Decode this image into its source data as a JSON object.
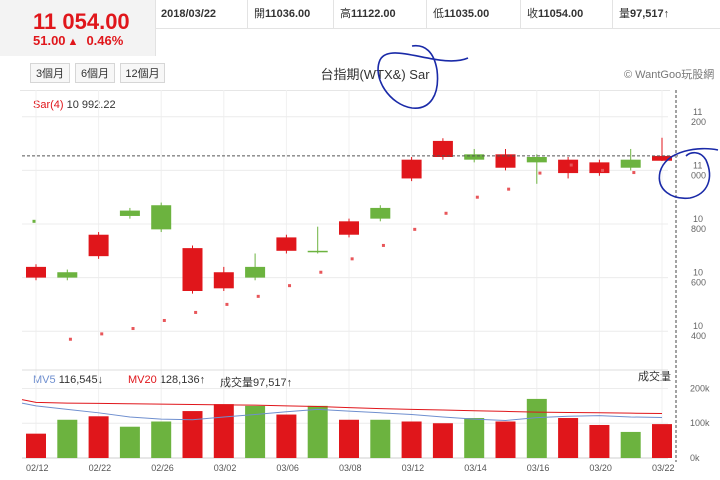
{
  "quote": {
    "price": "11 054.00",
    "change": "51.00",
    "change_arrow": "▲",
    "change_pct": "0.46%"
  },
  "info": {
    "date": "2018/03/22",
    "open_label": "開",
    "open": "11036.00",
    "high_label": "高",
    "high": "11122.00",
    "low_label": "低",
    "low": "11035.00",
    "close_label": "收",
    "close": "11054.00",
    "volume_label": "量",
    "volume": "97,517↑"
  },
  "range_buttons": [
    "3個月",
    "6個月",
    "12個月"
  ],
  "chart_title": "台指期(WTX&) Sar",
  "brand": "© WantGoo玩股網",
  "sar_legend": {
    "key": "Sar(4)",
    "value": "10 992.22"
  },
  "volume_legend": {
    "mv5_label": "MV5",
    "mv5_value": "116,545↓",
    "mv20_label": "MV20",
    "mv20_value": "128,136↑",
    "vol_label": "成交量",
    "vol_value": "97,517↑",
    "axis_title": "成交量"
  },
  "colors": {
    "up": "#e0161b",
    "down": "#6cb33f",
    "mv5": "#6f8fcf",
    "mv20": "#e0161b",
    "sar": "#e8565a",
    "pen": "#1a2aa8"
  },
  "chart_data": {
    "type": "candlestick",
    "title": "台指期(WTX&) Sar",
    "x_tick_labels": [
      "02/12",
      "02/22",
      "02/26",
      "03/02",
      "03/06",
      "03/08",
      "03/12",
      "03/14",
      "03/16",
      "03/20",
      "03/22"
    ],
    "y_tick_labels": [
      "11 200",
      "11 000",
      "10 800",
      "10 600",
      "10 400"
    ],
    "volume_tick_labels": [
      "200k",
      "100k",
      "0k"
    ],
    "ylim": [
      10300,
      11300
    ],
    "candles": [
      {
        "open": 10600,
        "close": 10640,
        "high": 10650,
        "low": 10590,
        "up": true
      },
      {
        "open": 10600,
        "close": 10620,
        "high": 10630,
        "low": 10590,
        "up": false
      },
      {
        "open": 10680,
        "close": 10760,
        "high": 10770,
        "low": 10670,
        "up": true
      },
      {
        "open": 10850,
        "close": 10830,
        "high": 10860,
        "low": 10820,
        "up": false
      },
      {
        "open": 10870,
        "close": 10780,
        "high": 10880,
        "low": 10770,
        "up": false
      },
      {
        "open": 10550,
        "close": 10710,
        "high": 10720,
        "low": 10540,
        "up": true
      },
      {
        "open": 10560,
        "close": 10620,
        "high": 10640,
        "low": 10550,
        "up": true
      },
      {
        "open": 10640,
        "close": 10600,
        "high": 10690,
        "low": 10590,
        "up": false
      },
      {
        "open": 10700,
        "close": 10750,
        "high": 10760,
        "low": 10690,
        "up": true
      },
      {
        "open": 10700,
        "close": 10700,
        "high": 10790,
        "low": 10690,
        "up": false
      },
      {
        "open": 10760,
        "close": 10810,
        "high": 10820,
        "low": 10750,
        "up": true
      },
      {
        "open": 10860,
        "close": 10820,
        "high": 10870,
        "low": 10810,
        "up": false
      },
      {
        "open": 10970,
        "close": 11040,
        "high": 11050,
        "low": 10960,
        "up": true
      },
      {
        "open": 11050,
        "close": 11110,
        "high": 11120,
        "low": 11040,
        "up": true
      },
      {
        "open": 11060,
        "close": 11040,
        "high": 11080,
        "low": 11030,
        "up": false
      },
      {
        "open": 11060,
        "close": 11010,
        "high": 11080,
        "low": 11000,
        "up": true
      },
      {
        "open": 11050,
        "close": 11030,
        "high": 11060,
        "low": 10950,
        "up": false
      },
      {
        "open": 11040,
        "close": 10990,
        "high": 11050,
        "low": 10970,
        "up": true
      },
      {
        "open": 11030,
        "close": 10990,
        "high": 11040,
        "low": 10980,
        "up": true
      },
      {
        "open": 11040,
        "close": 11010,
        "high": 11080,
        "low": 11000,
        "up": false
      },
      {
        "open": 11036,
        "close": 11054,
        "high": 11122,
        "low": 11035,
        "up": true
      }
    ],
    "sar": [
      10810,
      10370,
      10390,
      10410,
      10440,
      10470,
      10500,
      10530,
      10570,
      10620,
      10670,
      10720,
      10780,
      10840,
      10900,
      10930,
      10990,
      11020,
      11000,
      10992
    ],
    "volume": [
      70,
      110,
      120,
      90,
      105,
      135,
      155,
      150,
      125,
      150,
      110,
      110,
      105,
      100,
      115,
      105,
      170,
      115,
      95,
      75,
      97.5
    ],
    "mv5": [
      150,
      140,
      130,
      118,
      112,
      110,
      118,
      125,
      133,
      140,
      135,
      130,
      125,
      118,
      112,
      108,
      116,
      120,
      122,
      118,
      116.5
    ],
    "mv20": [
      160,
      158,
      157,
      156,
      155,
      154,
      153,
      152,
      150,
      148,
      145,
      142,
      140,
      138,
      136,
      134,
      132,
      131,
      130,
      129,
      128.1
    ]
  }
}
